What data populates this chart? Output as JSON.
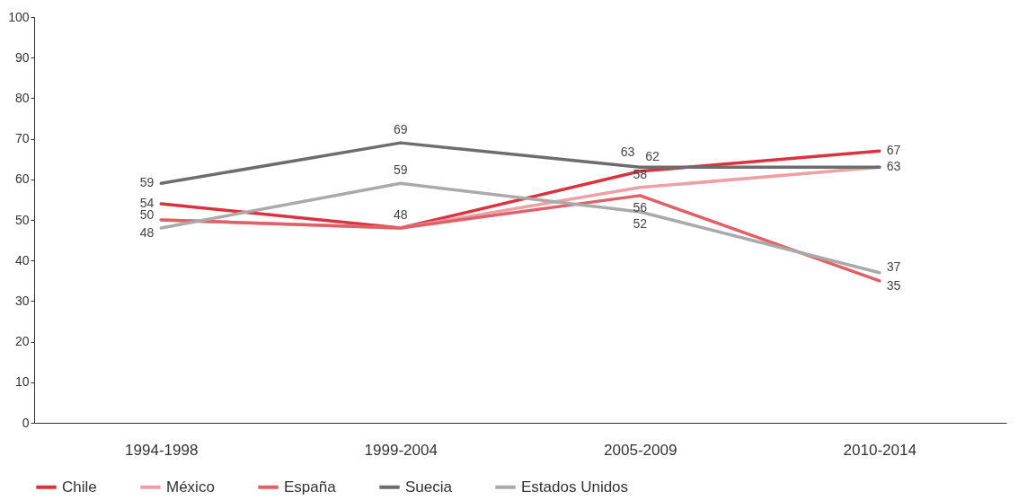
{
  "chart_data": {
    "type": "line",
    "categories": [
      "1994-1998",
      "1999-2004",
      "2005-2009",
      "2010-2014"
    ],
    "ylim": [
      0,
      100
    ],
    "yticks": [
      0,
      10,
      20,
      30,
      40,
      50,
      60,
      70,
      80,
      90,
      100
    ],
    "grid": false,
    "legend": "bottom",
    "line_style": "solid",
    "marker": "none",
    "series": [
      {
        "name": "Chile",
        "color": "#d9343d",
        "values": [
          54,
          48,
          62,
          67
        ],
        "value_labels": [
          "54",
          null,
          "62",
          "67"
        ]
      },
      {
        "name": "México",
        "color": "#eda0a5",
        "values": [
          50,
          48,
          58,
          63
        ],
        "value_labels": [
          "50",
          "48",
          "58",
          "63"
        ]
      },
      {
        "name": "España",
        "color": "#e0606a",
        "values": [
          50,
          48,
          56,
          35
        ],
        "value_labels": [
          null,
          null,
          "56",
          "35"
        ]
      },
      {
        "name": "Suecia",
        "color": "#6d6d6d",
        "values": [
          59,
          69,
          63,
          63
        ],
        "value_labels": [
          "59",
          "69",
          "63",
          null
        ]
      },
      {
        "name": "Estados Unidos",
        "color": "#aaaaaa",
        "values": [
          48,
          59,
          52,
          37
        ],
        "value_labels": [
          "48",
          "59",
          "52",
          "37"
        ]
      }
    ]
  }
}
